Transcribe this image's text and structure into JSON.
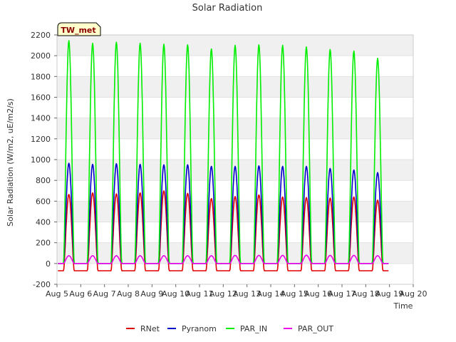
{
  "chart_data": {
    "type": "line",
    "title": "Solar Radiation",
    "xlabel": "Time",
    "ylabel": "Solar Radiation (W/m2, uE/m2/s)",
    "badge": "TW_met",
    "ylim": [
      -200,
      2200
    ],
    "xlim": [
      "Aug 5",
      "Aug 20"
    ],
    "y_ticks": [
      -200,
      0,
      200,
      400,
      600,
      800,
      1000,
      1200,
      1400,
      1600,
      1800,
      2000,
      2200
    ],
    "x_ticks": [
      "Aug 5",
      "Aug 6",
      "Aug 7",
      "Aug 8",
      "Aug 9",
      "Aug 10",
      "Aug 11",
      "Aug 12",
      "Aug 13",
      "Aug 14",
      "Aug 15",
      "Aug 16",
      "Aug 17",
      "Aug 18",
      "Aug 19",
      "Aug 20"
    ],
    "grid": "horizontal bands",
    "legend_position": "bottom",
    "days": [
      "Aug 5",
      "Aug 6",
      "Aug 7",
      "Aug 8",
      "Aug 9",
      "Aug 10",
      "Aug 11",
      "Aug 12",
      "Aug 13",
      "Aug 14",
      "Aug 15",
      "Aug 16",
      "Aug 17",
      "Aug 18"
    ],
    "series": [
      {
        "name": "RNet",
        "color": "#dd0000",
        "daily_peak": [
          665,
          680,
          670,
          680,
          700,
          675,
          625,
          645,
          660,
          640,
          635,
          630,
          640,
          610
        ],
        "night_value": -70
      },
      {
        "name": "Pyranom",
        "color": "#0000cc",
        "daily_peak": [
          965,
          955,
          960,
          955,
          950,
          950,
          935,
          935,
          940,
          935,
          935,
          915,
          900,
          875
        ],
        "night_value": 0
      },
      {
        "name": "PAR_IN",
        "color": "#00ee00",
        "daily_peak": [
          2145,
          2120,
          2130,
          2120,
          2110,
          2105,
          2065,
          2100,
          2105,
          2100,
          2085,
          2060,
          2045,
          1975
        ],
        "night_value": 0
      },
      {
        "name": "PAR_OUT",
        "color": "#ee00ee",
        "daily_peak": [
          75,
          75,
          75,
          75,
          75,
          75,
          75,
          78,
          78,
          78,
          80,
          78,
          78,
          75
        ],
        "night_value": 0
      }
    ]
  }
}
